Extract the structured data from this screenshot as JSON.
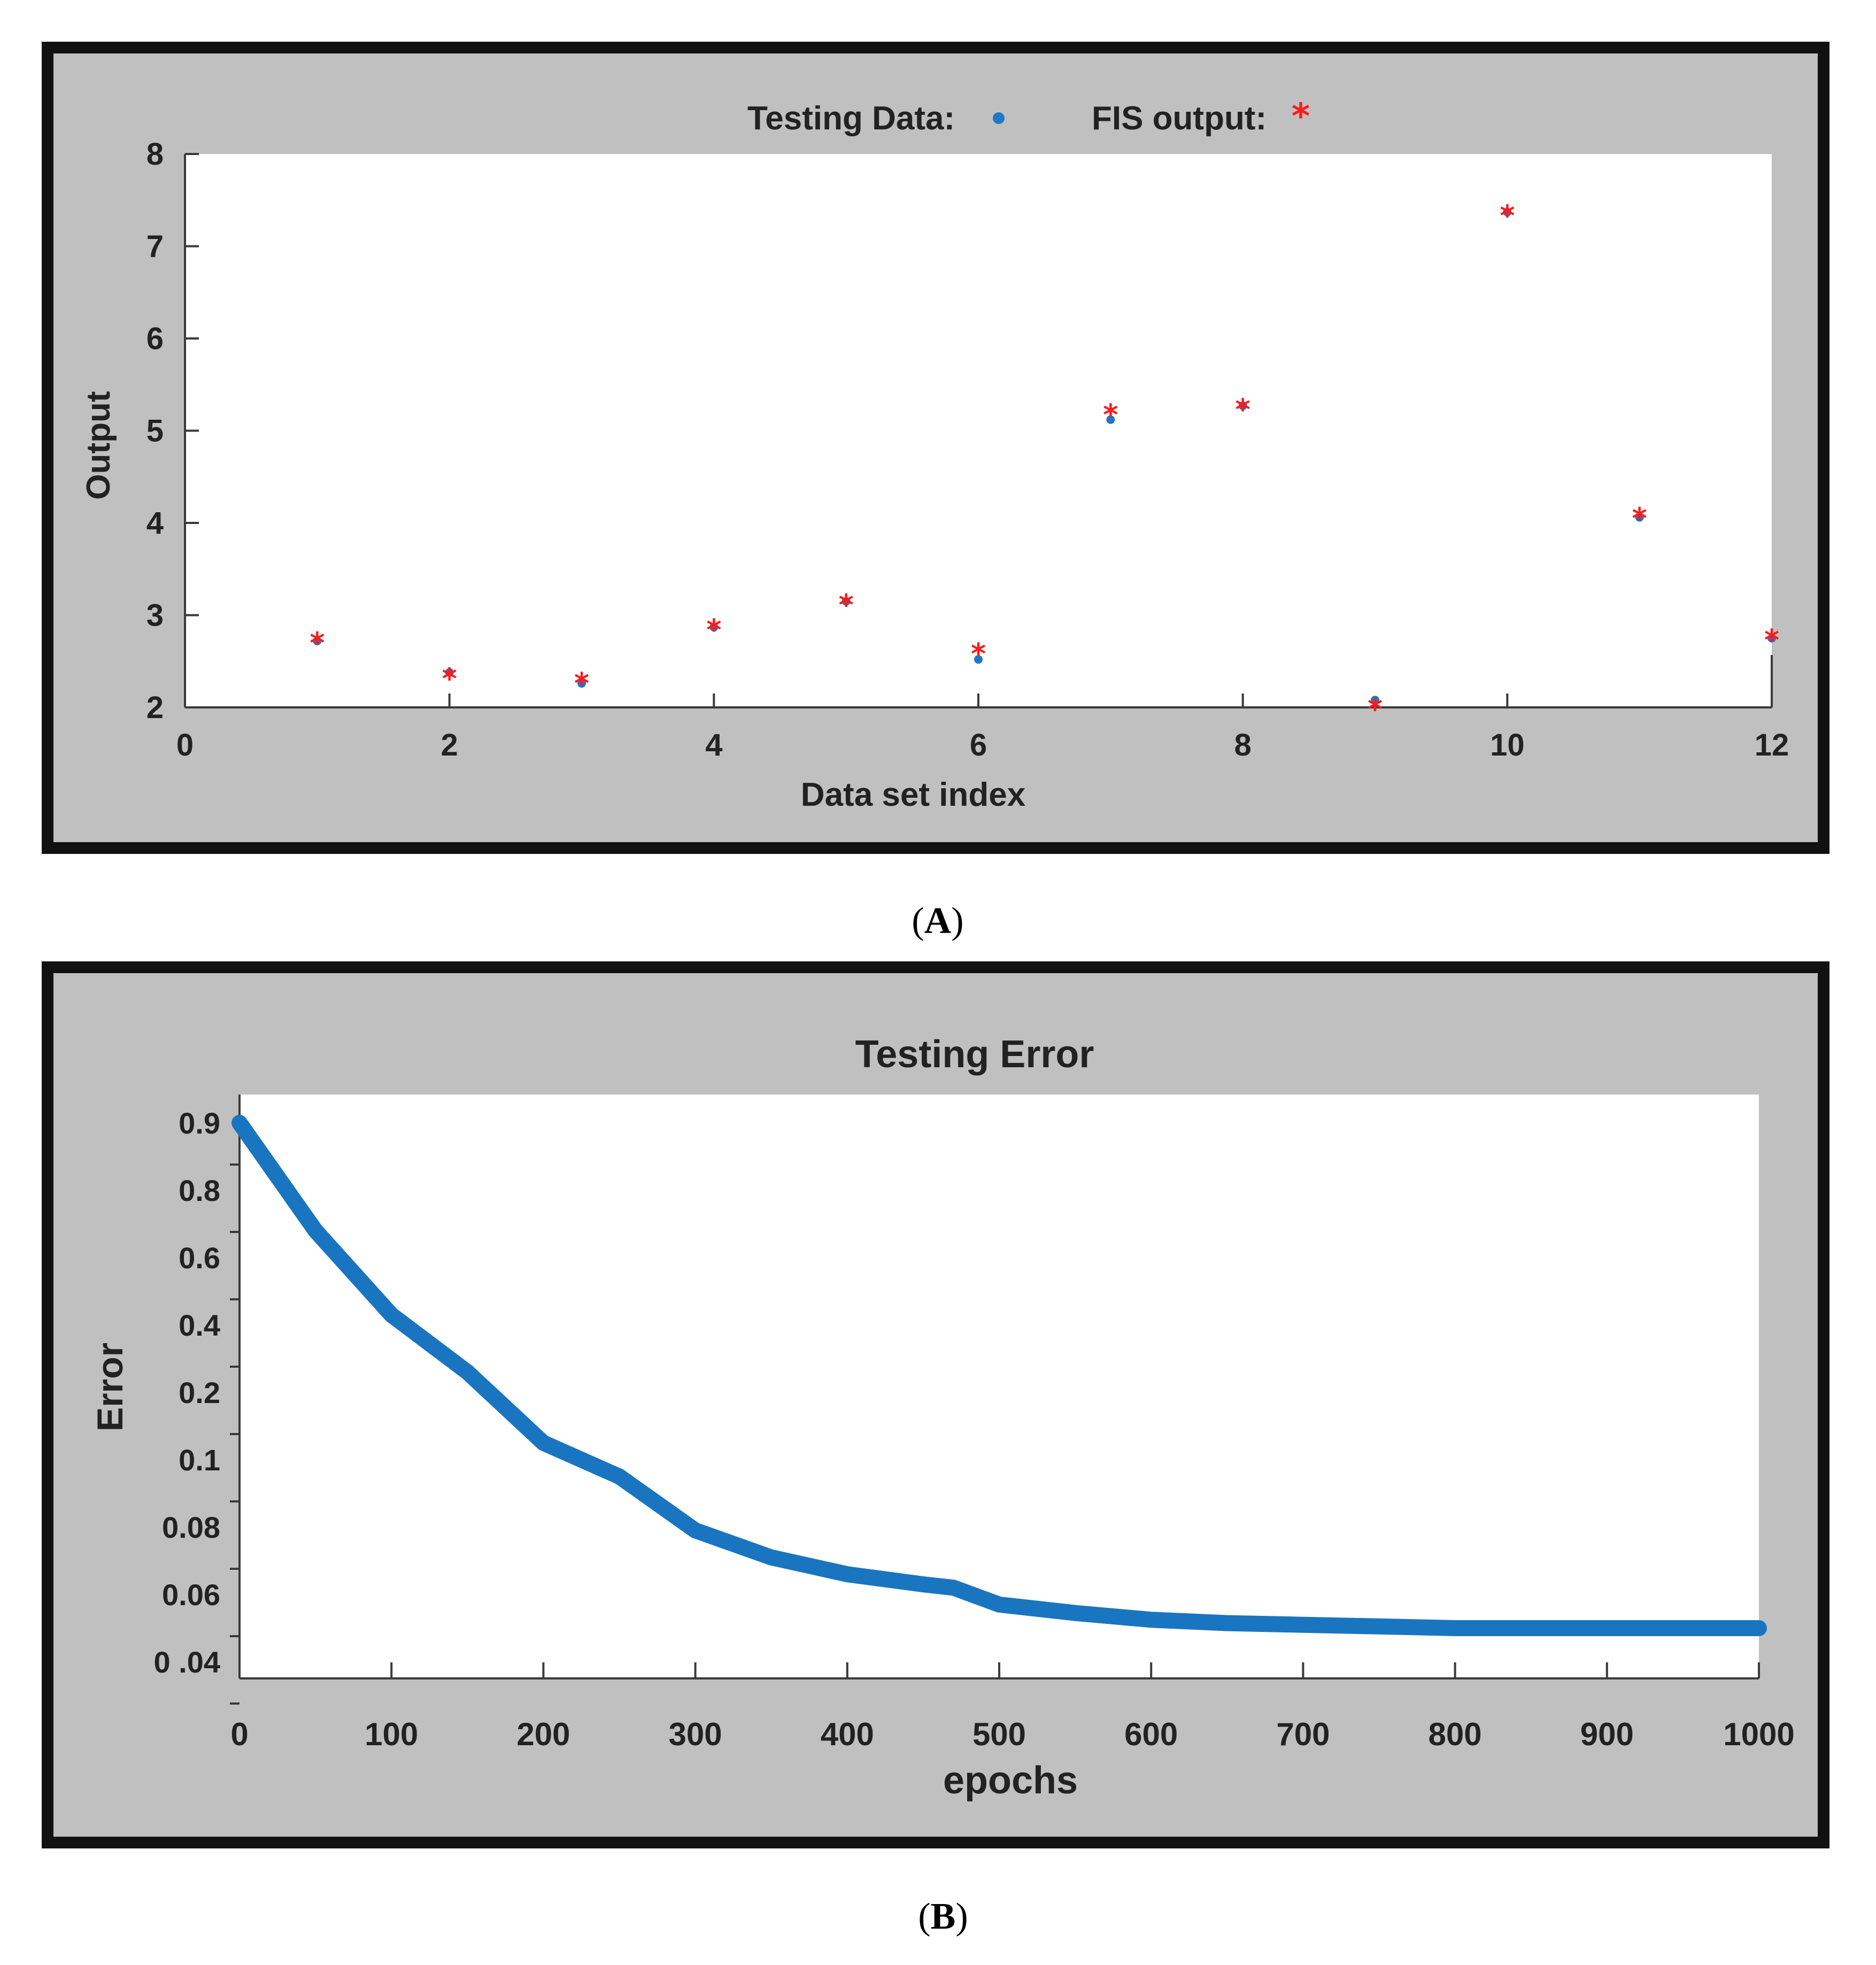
{
  "chart_data": [
    {
      "type": "scatter",
      "panel": "A",
      "title": "",
      "xlabel": "Data set index",
      "ylabel": "Output",
      "xlim": [
        0,
        12
      ],
      "ylim": [
        2,
        8
      ],
      "x_ticks": [
        0,
        2,
        4,
        6,
        8,
        10,
        12
      ],
      "y_ticks": [
        2,
        3,
        4,
        5,
        6,
        7,
        8
      ],
      "grid": false,
      "legend": {
        "placement": "top-center",
        "entries": [
          {
            "label": "Testing Data:",
            "marker": "dot",
            "color": "#1f77c8"
          },
          {
            "label": "FIS output:",
            "marker": "*",
            "color": "#ff1a1a"
          }
        ]
      },
      "series": [
        {
          "name": "Testing Data",
          "color": "#1f77c8",
          "x": [
            1,
            2,
            3,
            4,
            5,
            6,
            7,
            8,
            9,
            10,
            11,
            12
          ],
          "y": [
            2.72,
            2.38,
            2.26,
            2.87,
            3.15,
            2.52,
            5.12,
            5.27,
            2.08,
            7.37,
            4.06,
            2.75
          ]
        },
        {
          "name": "FIS output",
          "color": "#ff1a1a",
          "x": [
            1,
            2,
            3,
            4,
            5,
            6,
            7,
            8,
            9,
            10,
            11,
            12
          ],
          "y": [
            2.72,
            2.33,
            2.28,
            2.86,
            3.13,
            2.6,
            5.19,
            5.25,
            2.0,
            7.35,
            4.07,
            2.75
          ]
        }
      ]
    },
    {
      "type": "line",
      "panel": "B",
      "title": "Testing Error",
      "xlabel": "epochs",
      "ylabel": "Error",
      "xlim": [
        0,
        1000
      ],
      "x_ticks": [
        0,
        100,
        200,
        300,
        400,
        500,
        600,
        700,
        800,
        900,
        1000
      ],
      "y_ticks": [
        "0.9",
        "0.8",
        "0.6",
        "0.4",
        "0.2",
        "0.1",
        "0.08",
        "0.06",
        "0 .04"
      ],
      "grid": false,
      "series": [
        {
          "color": "#1a75c0",
          "x": [
            0,
            50,
            100,
            150,
            200,
            250,
            300,
            350,
            400,
            450,
            470,
            500,
            550,
            600,
            650,
            700,
            750,
            800,
            850,
            900,
            950,
            1000
          ],
          "y": [
            0.9,
            0.68,
            0.43,
            0.26,
            0.125,
            0.095,
            0.079,
            0.071,
            0.066,
            0.063,
            0.062,
            0.057,
            0.0545,
            0.0525,
            0.0515,
            0.051,
            0.0505,
            0.05,
            0.05,
            0.05,
            0.05,
            0.05
          ]
        }
      ]
    }
  ],
  "captions": {
    "a": "A",
    "b": "B"
  }
}
